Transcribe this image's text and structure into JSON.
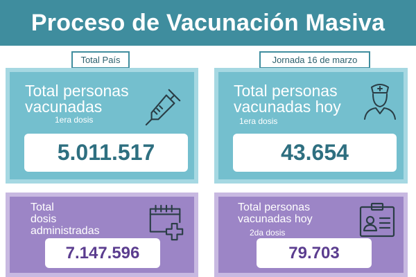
{
  "header": {
    "title": "Proceso de Vacunación Masiva"
  },
  "tags": {
    "left": "Total País",
    "right": "Jornada 16 de marzo"
  },
  "cards": [
    {
      "title_line1": "Total personas",
      "title_line2": "vacunadas",
      "subtitle": "1era dosis",
      "value": "5.011.517",
      "icon": "syringe-icon"
    },
    {
      "title_line1": "Total personas",
      "title_line2": "vacunadas hoy",
      "subtitle": "1era dosis",
      "value": "43.654",
      "icon": "nurse-icon"
    },
    {
      "title_line1": "Total",
      "title_line2": "dosis",
      "title_line3": "administradas",
      "value": "7.147.596",
      "icon": "calendar-plus-icon"
    },
    {
      "title_line1": "Total personas",
      "title_line2": "vacunadas hoy",
      "subtitle": "2da dosis",
      "value": "79.703",
      "icon": "id-card-icon"
    }
  ],
  "colors": {
    "header_bg": "#3f8d9e",
    "teal_card": "#74bfce",
    "teal_border": "#a6d8e2",
    "purple_card": "#9c85c6",
    "purple_border": "#c8b9e1",
    "teal_value": "#2e6f80",
    "purple_value": "#5b3d8f"
  }
}
